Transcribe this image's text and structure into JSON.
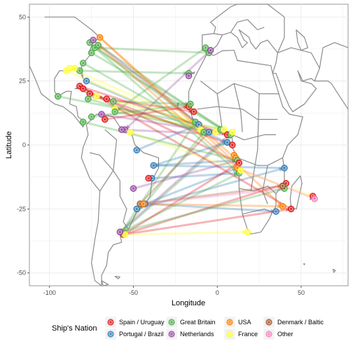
{
  "chart_data": {
    "type": "scatter",
    "subtype": "flow-map",
    "xlabel": "Longitude",
    "ylabel": "Latitude",
    "xlim": [
      -112,
      78
    ],
    "ylim": [
      -55,
      55
    ],
    "x_ticks": [
      -100,
      -50,
      0,
      50
    ],
    "y_ticks": [
      -50,
      -25,
      0,
      25,
      50
    ],
    "grid": true,
    "legend": {
      "title": "Ship's Nation",
      "placement": "bottom",
      "entries": [
        {
          "name": "Spain / Uruguay",
          "color": "#E41A1C"
        },
        {
          "name": "Portugal / Brazil",
          "color": "#377EB8"
        },
        {
          "name": "Great Britain",
          "color": "#4DAF4A"
        },
        {
          "name": "Netherlands",
          "color": "#984EA3"
        },
        {
          "name": "USA",
          "color": "#FF7F00"
        },
        {
          "name": "France",
          "color": "#FFFF33"
        },
        {
          "name": "Denmark / Baltic",
          "color": "#A65628"
        },
        {
          "name": "Other",
          "color": "#F781BF"
        }
      ]
    },
    "points": [
      {
        "nation": "Great Britain",
        "x": -73,
        "y": 38
      },
      {
        "nation": "Great Britain",
        "x": -75,
        "y": 36
      },
      {
        "nation": "Great Britain",
        "x": -71,
        "y": 39
      },
      {
        "nation": "Great Britain",
        "x": -76,
        "y": 40
      },
      {
        "nation": "Netherlands",
        "x": -74,
        "y": 41
      },
      {
        "nation": "USA",
        "x": -70,
        "y": 42
      },
      {
        "nation": "Great Britain",
        "x": -80,
        "y": 32
      },
      {
        "nation": "Great Britain",
        "x": -82,
        "y": 29
      },
      {
        "nation": "France",
        "x": -90,
        "y": 29
      },
      {
        "nation": "France",
        "x": -88,
        "y": 30
      },
      {
        "nation": "France",
        "x": -85,
        "y": 30
      },
      {
        "nation": "Great Britain",
        "x": -95,
        "y": 19
      },
      {
        "nation": "Spain / Uruguay",
        "x": -82,
        "y": 23
      },
      {
        "nation": "Spain / Uruguay",
        "x": -80,
        "y": 22
      },
      {
        "nation": "Portugal / Brazil",
        "x": -78,
        "y": 25
      },
      {
        "nation": "Spain / Uruguay",
        "x": -76,
        "y": 20
      },
      {
        "nation": "France",
        "x": -72,
        "y": 19
      },
      {
        "nation": "Great Britain",
        "x": -77,
        "y": 18
      },
      {
        "nation": "Spain / Uruguay",
        "x": -66,
        "y": 18
      },
      {
        "nation": "Great Britain",
        "x": -62,
        "y": 17
      },
      {
        "nation": "France",
        "x": -61,
        "y": 14
      },
      {
        "nation": "Great Britain",
        "x": -61,
        "y": 13
      },
      {
        "nation": "Netherlands",
        "x": -69,
        "y": 12
      },
      {
        "nation": "Great Britain",
        "x": -80,
        "y": 9
      },
      {
        "nation": "Great Britain",
        "x": -75,
        "y": 11
      },
      {
        "nation": "Spain / Uruguay",
        "x": -67,
        "y": 10
      },
      {
        "nation": "Netherlands",
        "x": -55,
        "y": 6
      },
      {
        "nation": "Netherlands",
        "x": -57,
        "y": 6
      },
      {
        "nation": "France",
        "x": -52,
        "y": 5
      },
      {
        "nation": "Portugal / Brazil",
        "x": -48,
        "y": -2
      },
      {
        "nation": "Portugal / Brazil",
        "x": -38,
        "y": -8
      },
      {
        "nation": "Portugal / Brazil",
        "x": -39,
        "y": -13
      },
      {
        "nation": "Spain / Uruguay",
        "x": -41,
        "y": -13
      },
      {
        "nation": "Netherlands",
        "x": -50,
        "y": -17
      },
      {
        "nation": "Portugal / Brazil",
        "x": -43,
        "y": -23
      },
      {
        "nation": "Denmark / Baltic",
        "x": -46,
        "y": -23
      },
      {
        "nation": "USA",
        "x": -44,
        "y": -23
      },
      {
        "nation": "Portugal / Brazil",
        "x": -48,
        "y": -25
      },
      {
        "nation": "Great Britain",
        "x": -57,
        "y": -34
      },
      {
        "nation": "Spain / Uruguay",
        "x": -56,
        "y": -35
      },
      {
        "nation": "France",
        "x": -55,
        "y": -35
      },
      {
        "nation": "Netherlands",
        "x": -58,
        "y": -34
      },
      {
        "nation": "Great Britain",
        "x": -5,
        "y": 36
      },
      {
        "nation": "Great Britain",
        "x": -7,
        "y": 38
      },
      {
        "nation": "Netherlands",
        "x": -4,
        "y": 37
      },
      {
        "nation": "Great Britain",
        "x": -17,
        "y": 28
      },
      {
        "nation": "Netherlands",
        "x": -17,
        "y": 27
      },
      {
        "nation": "Spain / Uruguay",
        "x": -17,
        "y": 15
      },
      {
        "nation": "Great Britain",
        "x": -16,
        "y": 16
      },
      {
        "nation": "Spain / Uruguay",
        "x": -14,
        "y": 13
      },
      {
        "nation": "Great Britain",
        "x": -13,
        "y": 9
      },
      {
        "nation": "Portugal / Brazil",
        "x": -11,
        "y": 8
      },
      {
        "nation": "France",
        "x": -10,
        "y": 6
      },
      {
        "nation": "Great Britain",
        "x": -8,
        "y": 5
      },
      {
        "nation": "Portugal / Brazil",
        "x": -5,
        "y": 5
      },
      {
        "nation": "France",
        "x": -1,
        "y": 5
      },
      {
        "nation": "Great Britain",
        "x": 2,
        "y": 6
      },
      {
        "nation": "France",
        "x": 4,
        "y": 6
      },
      {
        "nation": "Spain / Uruguay",
        "x": 6,
        "y": 4
      },
      {
        "nation": "Great Britain",
        "x": 8,
        "y": 4
      },
      {
        "nation": "France",
        "x": 9,
        "y": 5
      },
      {
        "nation": "Portugal / Brazil",
        "x": 6,
        "y": 1
      },
      {
        "nation": "Spain / Uruguay",
        "x": 9,
        "y": 0
      },
      {
        "nation": "USA",
        "x": 10,
        "y": -4
      },
      {
        "nation": "USA",
        "x": 11,
        "y": -5
      },
      {
        "nation": "Great Britain",
        "x": 12,
        "y": -6
      },
      {
        "nation": "Spain / Uruguay",
        "x": 13,
        "y": -7
      },
      {
        "nation": "USA",
        "x": 12,
        "y": -9
      },
      {
        "nation": "Great Britain",
        "x": 13,
        "y": -11
      },
      {
        "nation": "France",
        "x": 14,
        "y": -10
      },
      {
        "nation": "Portugal / Brazil",
        "x": 40,
        "y": -9
      },
      {
        "nation": "Spain / Uruguay",
        "x": 41,
        "y": -15
      },
      {
        "nation": "Great Britain",
        "x": 40,
        "y": -17
      },
      {
        "nation": "Denmark / Baltic",
        "x": 39,
        "y": -16
      },
      {
        "nation": "Spain / Uruguay",
        "x": 44,
        "y": -25
      },
      {
        "nation": "USA",
        "x": 39,
        "y": -24
      },
      {
        "nation": "Portugal / Brazil",
        "x": 35,
        "y": -26
      },
      {
        "nation": "Spain / Uruguay",
        "x": 57,
        "y": -20
      },
      {
        "nation": "Other",
        "x": 58,
        "y": -21
      },
      {
        "nation": "France",
        "x": 18,
        "y": -34
      }
    ],
    "routes": [
      {
        "nation": "Great Britain",
        "from": [
          -73,
          38
        ],
        "to": [
          9,
          4
        ]
      },
      {
        "nation": "Great Britain",
        "from": [
          -75,
          36
        ],
        "to": [
          6,
          5
        ]
      },
      {
        "nation": "Great Britain",
        "from": [
          -71,
          39
        ],
        "to": [
          3,
          6
        ]
      },
      {
        "nation": "Great Britain",
        "from": [
          -76,
          40
        ],
        "to": [
          -13,
          9
        ]
      },
      {
        "nation": "Great Britain",
        "from": [
          -80,
          32
        ],
        "to": [
          -10,
          6
        ]
      },
      {
        "nation": "USA",
        "from": [
          -70,
          42
        ],
        "to": [
          12,
          -6
        ]
      },
      {
        "nation": "Netherlands",
        "from": [
          -74,
          41
        ],
        "to": [
          -5,
          5
        ]
      },
      {
        "nation": "Great Britain",
        "from": [
          -61,
          13
        ],
        "to": [
          9,
          4
        ]
      },
      {
        "nation": "Great Britain",
        "from": [
          -62,
          17
        ],
        "to": [
          -16,
          16
        ]
      },
      {
        "nation": "Great Britain",
        "from": [
          -77,
          18
        ],
        "to": [
          -8,
          5
        ]
      },
      {
        "nation": "Great Britain",
        "from": [
          -95,
          19
        ],
        "to": [
          4,
          6
        ]
      },
      {
        "nation": "France",
        "from": [
          -72,
          19
        ],
        "to": [
          2,
          6
        ]
      },
      {
        "nation": "France",
        "from": [
          -61,
          14
        ],
        "to": [
          -1,
          5
        ]
      },
      {
        "nation": "France",
        "from": [
          -88,
          30
        ],
        "to": [
          -11,
          8
        ]
      },
      {
        "nation": "Spain / Uruguay",
        "from": [
          -82,
          23
        ],
        "to": [
          6,
          4
        ]
      },
      {
        "nation": "Spain / Uruguay",
        "from": [
          -80,
          22
        ],
        "to": [
          13,
          -7
        ]
      },
      {
        "nation": "Spain / Uruguay",
        "from": [
          -66,
          18
        ],
        "to": [
          -14,
          13
        ]
      },
      {
        "nation": "Spain / Uruguay",
        "from": [
          -76,
          20
        ],
        "to": [
          9,
          0
        ]
      },
      {
        "nation": "Portugal / Brazil",
        "from": [
          -78,
          25
        ],
        "to": [
          6,
          1
        ]
      },
      {
        "nation": "Netherlands",
        "from": [
          -57,
          6
        ],
        "to": [
          8,
          4
        ]
      },
      {
        "nation": "Netherlands",
        "from": [
          -69,
          12
        ],
        "to": [
          -1,
          5
        ]
      },
      {
        "nation": "Great Britain",
        "from": [
          -5,
          36
        ],
        "to": [
          -73,
          38
        ]
      },
      {
        "nation": "Netherlands",
        "from": [
          -4,
          37
        ],
        "to": [
          -55,
          6
        ]
      },
      {
        "nation": "Great Britain",
        "from": [
          -7,
          38
        ],
        "to": [
          -61,
          13
        ]
      },
      {
        "nation": "Portugal / Brazil",
        "from": [
          -38,
          -8
        ],
        "to": [
          12,
          -6
        ]
      },
      {
        "nation": "Portugal / Brazil",
        "from": [
          -39,
          -13
        ],
        "to": [
          13,
          -11
        ]
      },
      {
        "nation": "Portugal / Brazil",
        "from": [
          -43,
          -23
        ],
        "to": [
          12,
          -9
        ]
      },
      {
        "nation": "Portugal / Brazil",
        "from": [
          -48,
          -25
        ],
        "to": [
          40,
          -9
        ]
      },
      {
        "nation": "Portugal / Brazil",
        "from": [
          -48,
          -2
        ],
        "to": [
          -11,
          8
        ]
      },
      {
        "nation": "Portugal / Brazil",
        "from": [
          -43,
          -23
        ],
        "to": [
          35,
          -26
        ]
      },
      {
        "nation": "Portugal / Brazil",
        "from": [
          -38,
          -8
        ],
        "to": [
          6,
          1
        ]
      },
      {
        "nation": "Great Britain",
        "from": [
          -57,
          -34
        ],
        "to": [
          9,
          4
        ]
      },
      {
        "nation": "Great Britain",
        "from": [
          -57,
          -34
        ],
        "to": [
          13,
          -11
        ]
      },
      {
        "nation": "Great Britain",
        "from": [
          -57,
          -34
        ],
        "to": [
          -8,
          5
        ]
      },
      {
        "nation": "Great Britain",
        "from": [
          -57,
          -34
        ],
        "to": [
          -13,
          9
        ]
      },
      {
        "nation": "Spain / Uruguay",
        "from": [
          -56,
          -35
        ],
        "to": [
          41,
          -15
        ]
      },
      {
        "nation": "Spain / Uruguay",
        "from": [
          -56,
          -35
        ],
        "to": [
          44,
          -25
        ]
      },
      {
        "nation": "Spain / Uruguay",
        "from": [
          -56,
          -35
        ],
        "to": [
          13,
          -7
        ]
      },
      {
        "nation": "USA",
        "from": [
          -44,
          -23
        ],
        "to": [
          39,
          -24
        ]
      },
      {
        "nation": "USA",
        "from": [
          -70,
          42
        ],
        "to": [
          39,
          -24
        ]
      },
      {
        "nation": "Denmark / Baltic",
        "from": [
          -46,
          -23
        ],
        "to": [
          39,
          -16
        ]
      },
      {
        "nation": "France",
        "from": [
          -55,
          -35
        ],
        "to": [
          18,
          -34
        ]
      },
      {
        "nation": "France",
        "from": [
          14,
          -10
        ],
        "to": [
          57,
          -20
        ]
      },
      {
        "nation": "France",
        "from": [
          -52,
          5
        ],
        "to": [
          14,
          -10
        ]
      },
      {
        "nation": "Other",
        "from": [
          58,
          -21
        ],
        "to": [
          12,
          -9
        ]
      },
      {
        "nation": "Other",
        "from": [
          -44,
          -23
        ],
        "to": [
          40,
          -17
        ]
      },
      {
        "nation": "Netherlands",
        "from": [
          -50,
          -17
        ],
        "to": [
          12,
          -6
        ]
      },
      {
        "nation": "Netherlands",
        "from": [
          -58,
          -34
        ],
        "to": [
          9,
          5
        ]
      },
      {
        "nation": "Great Britain",
        "from": [
          -73,
          38
        ],
        "to": [
          13,
          -11
        ]
      },
      {
        "nation": "Great Britain",
        "from": [
          -80,
          9
        ],
        "to": [
          12,
          -6
        ]
      },
      {
        "nation": "Great Britain",
        "from": [
          -75,
          11
        ],
        "to": [
          -16,
          16
        ]
      },
      {
        "nation": "Spain / Uruguay",
        "from": [
          -67,
          10
        ],
        "to": [
          -17,
          15
        ]
      },
      {
        "nation": "Portugal / Brazil",
        "from": [
          40,
          -9
        ],
        "to": [
          -38,
          -8
        ]
      },
      {
        "nation": "Great Britain",
        "from": [
          40,
          -17
        ],
        "to": [
          -57,
          -34
        ]
      },
      {
        "nation": "Spain / Uruguay",
        "from": [
          44,
          -25
        ],
        "to": [
          -82,
          23
        ]
      },
      {
        "nation": "USA",
        "from": [
          12,
          -9
        ],
        "to": [
          -71,
          39
        ]
      },
      {
        "nation": "Great Britain",
        "from": [
          -82,
          29
        ],
        "to": [
          -17,
          28
        ]
      },
      {
        "nation": "France",
        "from": [
          -90,
          29
        ],
        "to": [
          -10,
          6
        ]
      },
      {
        "nation": "Denmark / Baltic",
        "from": [
          -46,
          -23
        ],
        "to": [
          -5,
          5
        ]
      }
    ]
  }
}
